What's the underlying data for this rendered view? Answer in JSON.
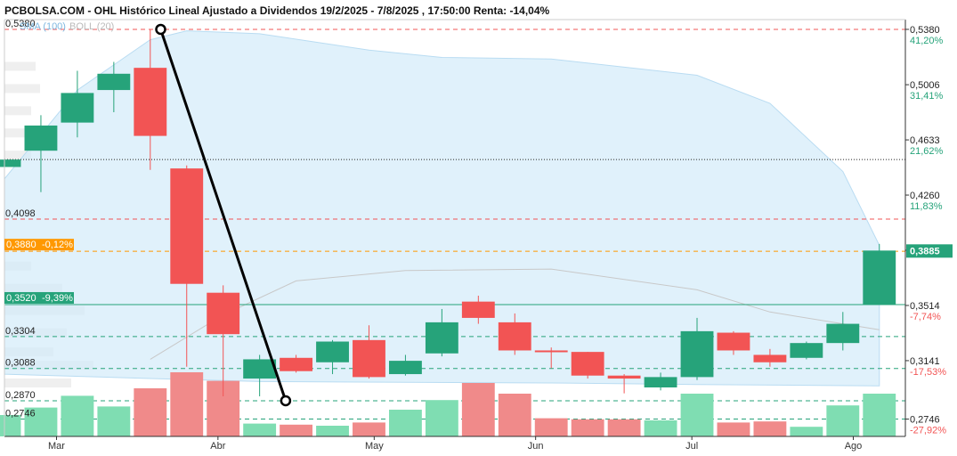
{
  "title": "PCBOLSA.COM - OHL Histórico Lineal Ajustado a Dividendos 19/2/2025 - 7/8/2025 , 17:50:00 Renta: -14,04%",
  "legend": {
    "sma": "SMA (100)",
    "boll": "BOLL (20)"
  },
  "colors": {
    "up": "#26a37a",
    "down": "#f25454",
    "band": "#d3ebfa",
    "sma_line": "#c8c8c8",
    "orange": "#ff9800",
    "green_text": "#26a37a",
    "red_text": "#f25454"
  },
  "chart_data": {
    "type": "candlestick",
    "ylim": [
      0.2629,
      0.5446
    ],
    "x_start": "2025-02-19",
    "x_end": "2025-08-11",
    "x_ticks": [
      {
        "date": "2025-03-01",
        "label": "Mar"
      },
      {
        "date": "2025-04-01",
        "label": "Abr"
      },
      {
        "date": "2025-05-01",
        "label": "May"
      },
      {
        "date": "2025-06-01",
        "label": "Jun"
      },
      {
        "date": "2025-07-01",
        "label": "Jul"
      },
      {
        "date": "2025-08-01",
        "label": "Ago"
      }
    ],
    "candles": [
      {
        "date": "2025-02-19",
        "open": 0.445,
        "close": 0.45,
        "high": 0.45,
        "low": 0.445
      },
      {
        "date": "2025-02-26",
        "open": 0.456,
        "close": 0.473,
        "high": 0.48,
        "low": 0.428
      },
      {
        "date": "2025-03-05",
        "open": 0.475,
        "close": 0.495,
        "high": 0.51,
        "low": 0.465
      },
      {
        "date": "2025-03-12",
        "open": 0.497,
        "close": 0.508,
        "high": 0.516,
        "low": 0.482
      },
      {
        "date": "2025-03-19",
        "open": 0.512,
        "close": 0.466,
        "high": 0.538,
        "low": 0.443
      },
      {
        "date": "2025-03-26",
        "open": 0.444,
        "close": 0.366,
        "high": 0.446,
        "low": 0.31
      },
      {
        "date": "2025-04-02",
        "open": 0.36,
        "close": 0.332,
        "high": 0.365,
        "low": 0.29
      },
      {
        "date": "2025-04-09",
        "open": 0.302,
        "close": 0.315,
        "high": 0.318,
        "low": 0.29
      },
      {
        "date": "2025-04-16",
        "open": 0.316,
        "close": 0.307,
        "high": 0.318,
        "low": 0.306
      },
      {
        "date": "2025-04-23",
        "open": 0.313,
        "close": 0.327,
        "high": 0.328,
        "low": 0.305
      },
      {
        "date": "2025-04-30",
        "open": 0.328,
        "close": 0.303,
        "high": 0.338,
        "low": 0.302
      },
      {
        "date": "2025-05-07",
        "open": 0.305,
        "close": 0.314,
        "high": 0.318,
        "low": 0.304
      },
      {
        "date": "2025-05-14",
        "open": 0.319,
        "close": 0.34,
        "high": 0.349,
        "low": 0.317
      },
      {
        "date": "2025-05-21",
        "open": 0.354,
        "close": 0.343,
        "high": 0.358,
        "low": 0.339
      },
      {
        "date": "2025-05-28",
        "open": 0.34,
        "close": 0.321,
        "high": 0.346,
        "low": 0.318
      },
      {
        "date": "2025-06-04",
        "open": 0.321,
        "close": 0.32,
        "high": 0.323,
        "low": 0.309
      },
      {
        "date": "2025-06-11",
        "open": 0.32,
        "close": 0.304,
        "high": 0.32,
        "low": 0.302
      },
      {
        "date": "2025-06-18",
        "open": 0.304,
        "close": 0.302,
        "high": 0.305,
        "low": 0.292
      },
      {
        "date": "2025-06-25",
        "open": 0.296,
        "close": 0.303,
        "high": 0.306,
        "low": 0.294
      },
      {
        "date": "2025-07-02",
        "open": 0.303,
        "close": 0.334,
        "high": 0.343,
        "low": 0.301
      },
      {
        "date": "2025-07-09",
        "open": 0.333,
        "close": 0.321,
        "high": 0.334,
        "low": 0.318
      },
      {
        "date": "2025-07-16",
        "open": 0.318,
        "close": 0.313,
        "high": 0.322,
        "low": 0.31
      },
      {
        "date": "2025-07-23",
        "open": 0.316,
        "close": 0.326,
        "high": 0.327,
        "low": 0.315
      },
      {
        "date": "2025-07-30",
        "open": 0.326,
        "close": 0.339,
        "high": 0.347,
        "low": 0.321
      },
      {
        "date": "2025-08-06",
        "open": 0.352,
        "close": 0.3885,
        "high": 0.393,
        "low": 0.352
      }
    ],
    "volume": [
      {
        "date": "2025-02-19",
        "value": 20,
        "dir": "up"
      },
      {
        "date": "2025-02-26",
        "value": 27,
        "dir": "up"
      },
      {
        "date": "2025-03-05",
        "value": 38,
        "dir": "up"
      },
      {
        "date": "2025-03-12",
        "value": 28,
        "dir": "up"
      },
      {
        "date": "2025-03-19",
        "value": 45,
        "dir": "down"
      },
      {
        "date": "2025-03-26",
        "value": 60,
        "dir": "down"
      },
      {
        "date": "2025-04-02",
        "value": 52,
        "dir": "down"
      },
      {
        "date": "2025-04-09",
        "value": 12,
        "dir": "up"
      },
      {
        "date": "2025-04-16",
        "value": 11,
        "dir": "down"
      },
      {
        "date": "2025-04-23",
        "value": 10,
        "dir": "up"
      },
      {
        "date": "2025-04-30",
        "value": 13,
        "dir": "down"
      },
      {
        "date": "2025-05-07",
        "value": 25,
        "dir": "up"
      },
      {
        "date": "2025-05-14",
        "value": 34,
        "dir": "up"
      },
      {
        "date": "2025-05-21",
        "value": 50,
        "dir": "down"
      },
      {
        "date": "2025-05-28",
        "value": 40,
        "dir": "down"
      },
      {
        "date": "2025-06-04",
        "value": 17,
        "dir": "down"
      },
      {
        "date": "2025-06-11",
        "value": 16,
        "dir": "down"
      },
      {
        "date": "2025-06-18",
        "value": 16,
        "dir": "down"
      },
      {
        "date": "2025-06-25",
        "value": 15,
        "dir": "up"
      },
      {
        "date": "2025-07-02",
        "value": 40,
        "dir": "up"
      },
      {
        "date": "2025-07-09",
        "value": 13,
        "dir": "down"
      },
      {
        "date": "2025-07-16",
        "value": 14,
        "dir": "down"
      },
      {
        "date": "2025-07-23",
        "value": 9,
        "dir": "up"
      },
      {
        "date": "2025-07-30",
        "value": 29,
        "dir": "up"
      },
      {
        "date": "2025-08-06",
        "value": 40,
        "dir": "up"
      }
    ],
    "bollinger": {
      "upper": [
        {
          "date": "2025-02-19",
          "value": 0.437
        },
        {
          "date": "2025-03-05",
          "value": 0.497
        },
        {
          "date": "2025-03-19",
          "value": 0.531
        },
        {
          "date": "2025-03-26",
          "value": 0.537
        },
        {
          "date": "2025-04-09",
          "value": 0.535
        },
        {
          "date": "2025-04-30",
          "value": 0.524
        },
        {
          "date": "2025-05-14",
          "value": 0.519
        },
        {
          "date": "2025-06-04",
          "value": 0.518
        },
        {
          "date": "2025-07-02",
          "value": 0.507
        },
        {
          "date": "2025-07-16",
          "value": 0.488
        },
        {
          "date": "2025-07-30",
          "value": 0.442
        },
        {
          "date": "2025-08-06",
          "value": 0.392
        }
      ],
      "lower": [
        {
          "date": "2025-02-19",
          "value": 0.305
        },
        {
          "date": "2025-03-19",
          "value": 0.302
        },
        {
          "date": "2025-04-09",
          "value": 0.3
        },
        {
          "date": "2025-06-04",
          "value": 0.299
        },
        {
          "date": "2025-07-02",
          "value": 0.298
        },
        {
          "date": "2025-08-06",
          "value": 0.297
        }
      ]
    },
    "sma": [
      {
        "date": "2025-03-19",
        "value": 0.315
      },
      {
        "date": "2025-04-02",
        "value": 0.345
      },
      {
        "date": "2025-04-16",
        "value": 0.368
      },
      {
        "date": "2025-05-07",
        "value": 0.375
      },
      {
        "date": "2025-06-04",
        "value": 0.376
      },
      {
        "date": "2025-07-02",
        "value": 0.362
      },
      {
        "date": "2025-07-16",
        "value": 0.347
      },
      {
        "date": "2025-08-06",
        "value": 0.335
      }
    ],
    "trendline": [
      {
        "date": "2025-03-21",
        "value": 0.538
      },
      {
        "date": "2025-04-14",
        "value": 0.287
      }
    ],
    "h_lines": [
      {
        "value": 0.538,
        "style": "dashed",
        "color": "#f25454"
      },
      {
        "value": 0.45,
        "style": "dotted",
        "color": "#222222"
      },
      {
        "value": 0.4098,
        "style": "dashed",
        "color": "#f25454"
      },
      {
        "value": 0.388,
        "style": "dashed",
        "color": "#ff9800"
      },
      {
        "value": 0.352,
        "style": "solid",
        "color": "#26a37a"
      },
      {
        "value": 0.3304,
        "style": "dashed",
        "color": "#26a37a"
      },
      {
        "value": 0.3088,
        "style": "dashed",
        "color": "#26a37a"
      },
      {
        "value": 0.287,
        "style": "dashed",
        "color": "#26a37a"
      },
      {
        "value": 0.2746,
        "style": "dashed",
        "color": "#26a37a"
      }
    ],
    "left_labels": [
      {
        "value": 0.538,
        "text": "0,5380",
        "kind": "plain"
      },
      {
        "value": 0.4098,
        "text": "0,4098",
        "kind": "plain"
      },
      {
        "value": 0.388,
        "text": "0,3880",
        "pct": "-0,12%",
        "kind": "orange"
      },
      {
        "value": 0.352,
        "text": "0,3520",
        "pct": "-9,39%",
        "kind": "green"
      },
      {
        "value": 0.3304,
        "text": "0,3304",
        "kind": "plain"
      },
      {
        "value": 0.3088,
        "text": "0,3088",
        "kind": "plain"
      },
      {
        "value": 0.287,
        "text": "0,2870",
        "kind": "plain"
      },
      {
        "value": 0.2746,
        "text": "0,2746",
        "kind": "plain"
      }
    ],
    "right_labels": [
      {
        "value": 0.538,
        "text": "0,5380",
        "pct": "41,20%",
        "pct_color": "green"
      },
      {
        "value": 0.5006,
        "text": "0,5006",
        "pct": "31,41%",
        "pct_color": "green"
      },
      {
        "value": 0.4633,
        "text": "0,4633",
        "pct": "21,62%",
        "pct_color": "green"
      },
      {
        "value": 0.426,
        "text": "0,4260",
        "pct": "11,83%",
        "pct_color": "green"
      },
      {
        "value": 0.3887,
        "text": "0,3887",
        "pct": "",
        "pct_color": "green"
      },
      {
        "value": 0.3514,
        "text": "0,3514",
        "pct": "-7,74%",
        "pct_color": "red"
      },
      {
        "value": 0.3141,
        "text": "0,3141",
        "pct": "-17,53%",
        "pct_color": "red"
      },
      {
        "value": 0.2746,
        "text": "0,2746",
        "pct": "-27,92%",
        "pct_color": "red"
      }
    ],
    "last_price": {
      "value": 0.3885,
      "text": "0,3885"
    },
    "volume_profile": [
      {
        "value": 0.513,
        "size": 0.35
      },
      {
        "value": 0.498,
        "size": 0.4
      },
      {
        "value": 0.483,
        "size": 0.3
      },
      {
        "value": 0.468,
        "size": 0.35
      },
      {
        "value": 0.453,
        "size": 0.3
      },
      {
        "value": 0.393,
        "size": 0.35
      },
      {
        "value": 0.378,
        "size": 0.3
      },
      {
        "value": 0.363,
        "size": 0.65
      },
      {
        "value": 0.348,
        "size": 0.9
      },
      {
        "value": 0.333,
        "size": 0.7
      },
      {
        "value": 0.32,
        "size": 0.55
      },
      {
        "value": 0.311,
        "size": 1.0
      },
      {
        "value": 0.299,
        "size": 0.75
      }
    ]
  }
}
